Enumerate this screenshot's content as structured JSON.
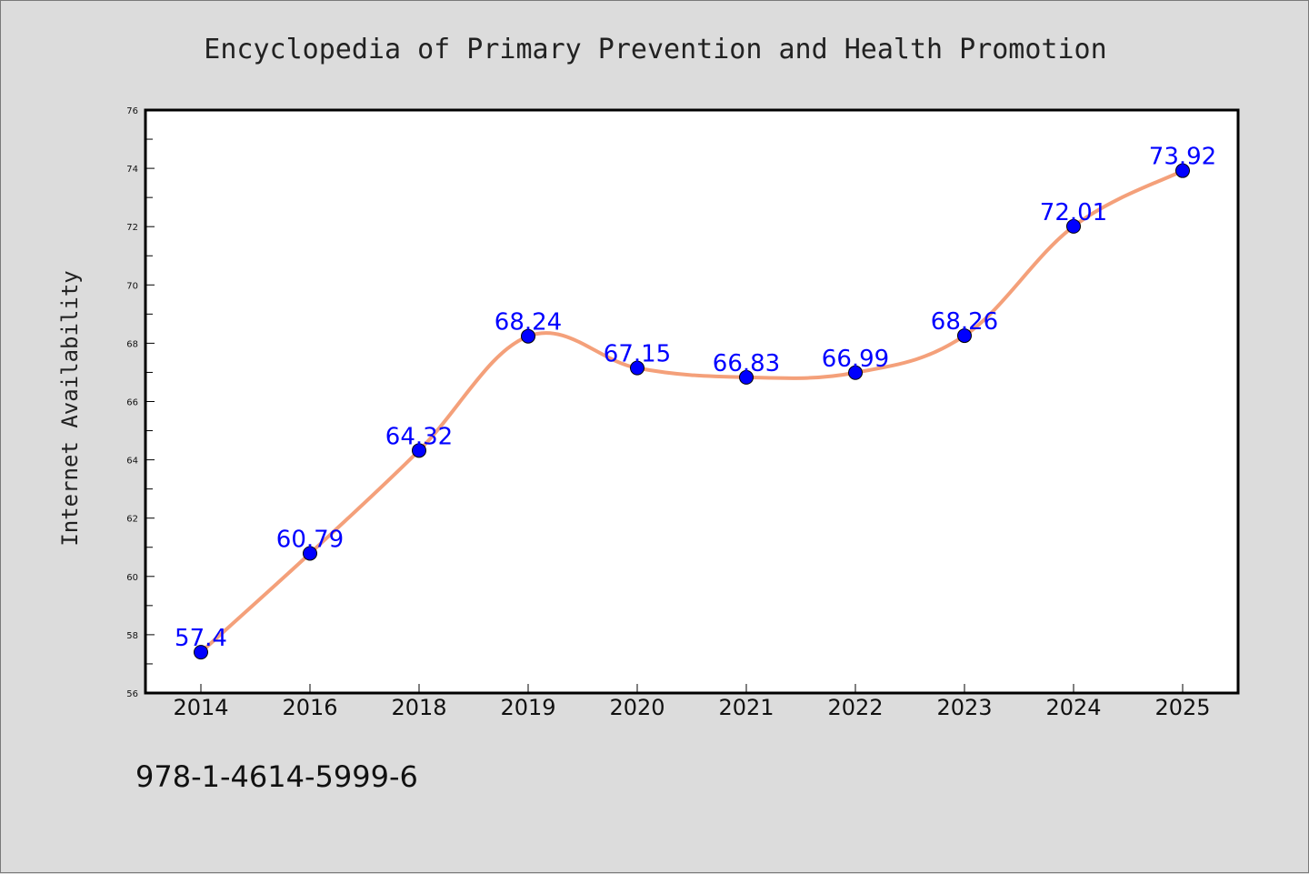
{
  "chart_data": {
    "type": "line",
    "title": "Encyclopedia of Primary Prevention and Health Promotion",
    "xlabel": "",
    "ylabel": "Internet Availability",
    "categories": [
      "2014",
      "2016",
      "2018",
      "2019",
      "2020",
      "2021",
      "2022",
      "2023",
      "2024",
      "2025"
    ],
    "series": [
      {
        "values": [
          57.4,
          60.79,
          64.32,
          68.24,
          67.15,
          66.83,
          66.99,
          68.26,
          72.01,
          73.92
        ],
        "data_labels": [
          "57.4",
          "60.79",
          "64.32",
          "68.24",
          "67.15",
          "66.83",
          "66.99",
          "68.26",
          "72.01",
          "73.92"
        ],
        "line_color": "#f4a07a",
        "marker_color": "#0000ff"
      }
    ],
    "ylim": [
      56,
      76
    ],
    "yticks": [
      "56",
      "58",
      "60",
      "62",
      "64",
      "66",
      "68",
      "70",
      "72",
      "74",
      "76"
    ],
    "grid": false,
    "legend": "none"
  },
  "footer": {
    "text": "978-1-4614-5999-6"
  },
  "colors": {
    "background": "#dcdcdc",
    "plot_area": "#ffffff",
    "axis": "#000000"
  }
}
